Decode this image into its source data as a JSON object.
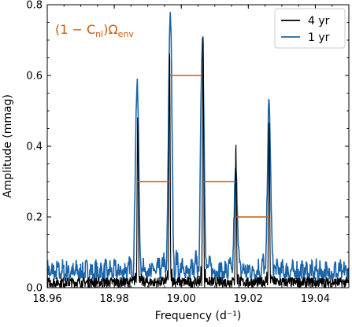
{
  "chart_data": {
    "type": "line",
    "xlabel": "Frequency (d⁻¹)",
    "ylabel": "Amplitude (mmag)",
    "xlim": [
      18.96,
      19.05
    ],
    "ylim": [
      0.0,
      0.8
    ],
    "xticks": [
      18.96,
      18.98,
      19.0,
      19.02,
      19.04
    ],
    "xtick_labels": [
      "18.96",
      "18.98",
      "19.00",
      "19.02",
      "19.04"
    ],
    "yticks": [
      0.0,
      0.2,
      0.4,
      0.6,
      0.8
    ],
    "ytick_labels": [
      "0.0",
      "0.2",
      "0.4",
      "0.6",
      "0.8"
    ],
    "legend": {
      "placement": "top-right",
      "entries": [
        "4 yr",
        "1 yr"
      ]
    },
    "annotation": {
      "base": "(1 − C",
      "subscript": "nl",
      "middle": ")Ω",
      "subscript2": "env",
      "color": "#cc5a0a"
    },
    "series": [
      {
        "name": "4 yr",
        "color": "#000000",
        "peaks": [
          {
            "x": 18.987,
            "y": 0.48
          },
          {
            "x": 18.9965,
            "y": 0.655
          },
          {
            "x": 19.0065,
            "y": 0.705
          },
          {
            "x": 19.0163,
            "y": 0.39
          },
          {
            "x": 19.0262,
            "y": 0.46
          }
        ],
        "peak_width": 0.00045,
        "noise_level": 0.03
      },
      {
        "name": "1 yr",
        "color": "#1a64a8",
        "peaks": [
          {
            "x": 18.9868,
            "y": 0.535
          },
          {
            "x": 18.9967,
            "y": 0.745
          },
          {
            "x": 19.0063,
            "y": 0.665
          },
          {
            "x": 19.0163,
            "y": 0.28
          },
          {
            "x": 19.0262,
            "y": 0.465
          }
        ],
        "peak_width": 0.0013,
        "noise_level": 0.06
      }
    ],
    "splittings": [
      {
        "x1": 18.9868,
        "x2": 18.9967,
        "y": 0.3
      },
      {
        "x1": 18.9967,
        "x2": 19.0063,
        "y": 0.6
      },
      {
        "x1": 19.0063,
        "x2": 19.0163,
        "y": 0.3
      },
      {
        "x1": 19.0163,
        "x2": 19.0262,
        "y": 0.2
      }
    ],
    "splitting_color": "#cc5a0a"
  }
}
